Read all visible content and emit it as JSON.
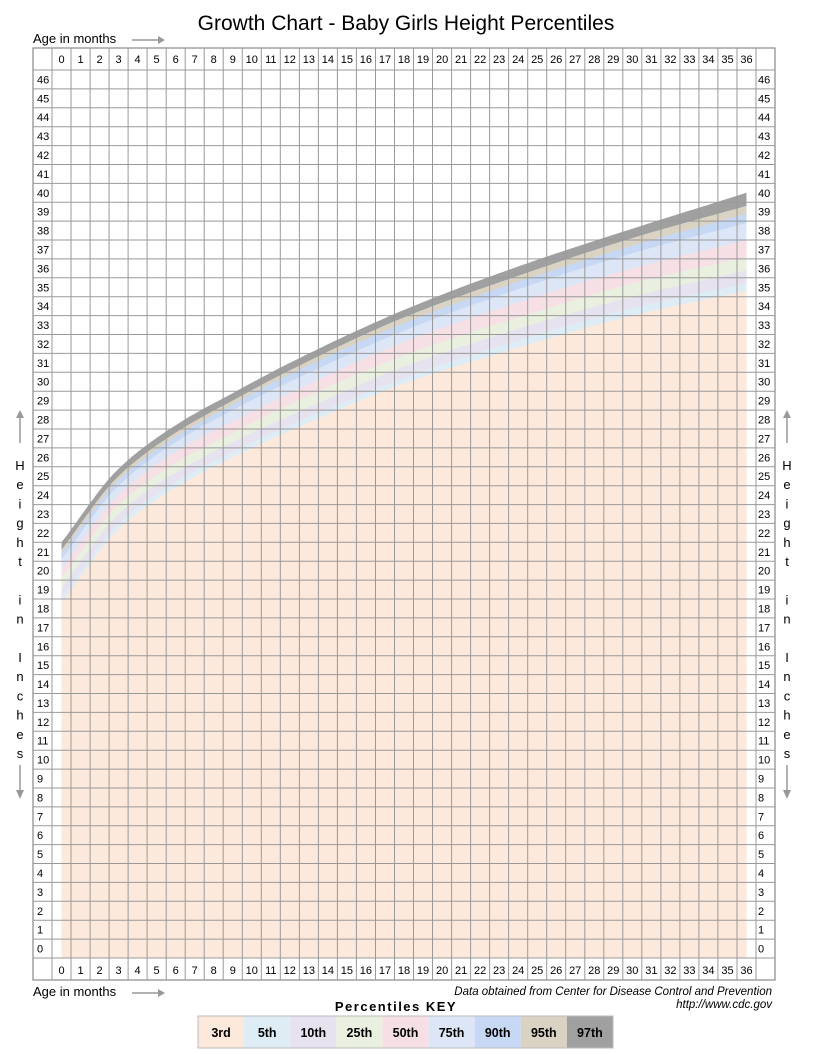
{
  "chart_data": {
    "type": "area",
    "title": "Growth Chart - Baby Girls Height Percentiles",
    "xlabel": "Age in months",
    "ylabel": "Height in Inches",
    "xlim": [
      0,
      36
    ],
    "ylim": [
      0,
      46
    ],
    "x_ticks": [
      0,
      1,
      2,
      3,
      4,
      5,
      6,
      7,
      8,
      9,
      10,
      11,
      12,
      13,
      14,
      15,
      16,
      17,
      18,
      19,
      20,
      21,
      22,
      23,
      24,
      25,
      26,
      27,
      28,
      29,
      30,
      31,
      32,
      33,
      34,
      35,
      36
    ],
    "y_ticks_left": [
      "0",
      "1",
      "2",
      "3",
      "4",
      "5",
      "6",
      "7",
      "8",
      "9",
      "10",
      "11",
      "12",
      "13",
      "14",
      "15",
      "16",
      "17",
      "18",
      "19",
      "20",
      "21",
      "22",
      "23",
      "24",
      "25",
      "26",
      "27",
      "28",
      "29",
      "30",
      "31",
      "32",
      "33",
      "34",
      "35",
      "36",
      "37",
      "38",
      "39",
      "40",
      "41",
      "42",
      "43",
      "44",
      "45",
      "46"
    ],
    "y_ticks_right": [
      "0",
      "1",
      "2",
      "3",
      "4",
      "5",
      "6",
      "7",
      "8",
      "9",
      "10",
      "11",
      "12",
      "13",
      "14",
      "15",
      "16",
      "17",
      "18",
      "19",
      "20",
      "21",
      "22",
      "23",
      "24",
      "25",
      "26",
      "27",
      "28",
      "29",
      "30",
      "31",
      "32",
      "33",
      "34",
      "35",
      "36",
      "37",
      "38",
      "39",
      "40",
      "41",
      "42",
      "43",
      "44",
      "45",
      "46"
    ],
    "grid": true,
    "x": [
      0,
      3,
      6,
      9,
      12,
      18,
      24,
      30,
      36
    ],
    "series": [
      {
        "name": "3rd",
        "color": "#fde9dc",
        "values": [
          17.9,
          21.9,
          24.1,
          25.7,
          27.1,
          29.6,
          31.5,
          33.1,
          34.4
        ]
      },
      {
        "name": "5th",
        "color": "#deecf5",
        "values": [
          18.3,
          22.2,
          24.4,
          26.0,
          27.4,
          29.9,
          31.8,
          33.5,
          34.8
        ]
      },
      {
        "name": "10th",
        "color": "#e6e2ef",
        "values": [
          18.6,
          22.5,
          24.7,
          26.3,
          27.7,
          30.2,
          32.2,
          33.9,
          35.2
        ]
      },
      {
        "name": "25th",
        "color": "#eaf0df",
        "values": [
          19.1,
          23.0,
          25.2,
          26.8,
          28.2,
          30.8,
          32.8,
          34.5,
          35.9
        ]
      },
      {
        "name": "50th",
        "color": "#f6e0e6",
        "values": [
          19.6,
          23.5,
          25.7,
          27.3,
          28.8,
          31.4,
          33.4,
          35.2,
          36.6
        ]
      },
      {
        "name": "75th",
        "color": "#dde6f6",
        "values": [
          20.1,
          24.0,
          26.3,
          27.9,
          29.4,
          32.1,
          34.2,
          36.0,
          37.5
        ]
      },
      {
        "name": "90th",
        "color": "#c6d8f4",
        "values": [
          20.6,
          24.5,
          26.8,
          28.5,
          30.0,
          32.7,
          34.9,
          36.8,
          38.4
        ]
      },
      {
        "name": "95th",
        "color": "#dad3c4",
        "values": [
          20.9,
          24.8,
          27.1,
          28.8,
          30.4,
          33.1,
          35.3,
          37.2,
          38.9
        ]
      },
      {
        "name": "97th",
        "color": "#a0a0a0",
        "values": [
          21.1,
          25.0,
          27.3,
          29.0,
          30.6,
          33.4,
          35.6,
          37.6,
          39.3
        ]
      }
    ],
    "top_curve": [
      21.5,
      25.4,
      27.7,
      29.4,
      31.0,
      33.8,
      36.1,
      38.1,
      40.0
    ],
    "legend": {
      "title": "Percentiles KEY",
      "placement": "bottom-center",
      "entries": [
        {
          "label": "3rd",
          "color": "#fde9dc"
        },
        {
          "label": "5th",
          "color": "#deecf5"
        },
        {
          "label": "10th",
          "color": "#e6e2ef"
        },
        {
          "label": "25th",
          "color": "#eaf0df"
        },
        {
          "label": "50th",
          "color": "#f6e0e6"
        },
        {
          "label": "75th",
          "color": "#dde6f6"
        },
        {
          "label": "90th",
          "color": "#c6d8f4"
        },
        {
          "label": "95th",
          "color": "#dad3c4"
        },
        {
          "label": "97th",
          "color": "#a0a0a0"
        }
      ]
    },
    "annotations": {
      "x_axis_top": "Age in months",
      "x_axis_bottom": "Age in months",
      "y_axis_left": "Height in Inches",
      "y_axis_right": "Height in Inches",
      "source": "Data obtained from Center for Disease Control and Prevention",
      "url": "http://www.cdc.gov"
    }
  }
}
